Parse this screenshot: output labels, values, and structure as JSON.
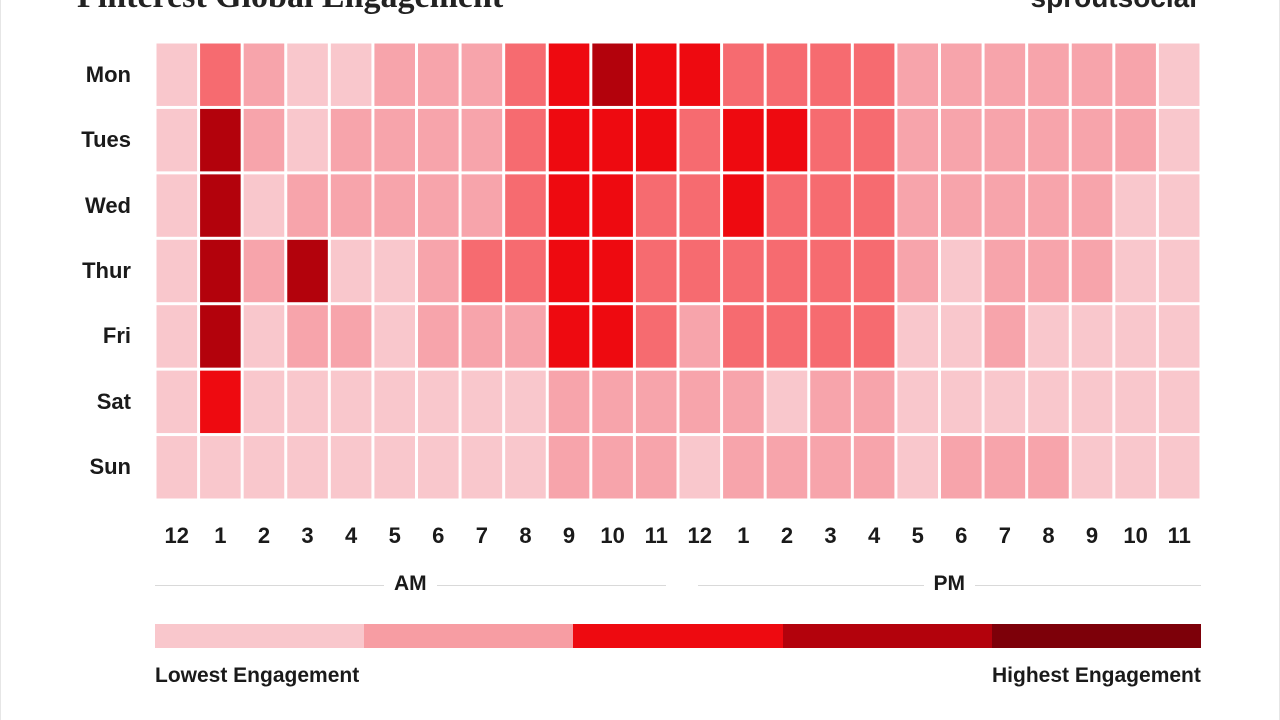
{
  "header": {
    "title": "Pinterest Global Engagement",
    "brand": "sproutsocial"
  },
  "chart_data": {
    "type": "heatmap",
    "title": "Pinterest Global Engagement",
    "rows": [
      "Mon",
      "Tues",
      "Wed",
      "Thur",
      "Fri",
      "Sat",
      "Sun"
    ],
    "columns": [
      "12",
      "1",
      "2",
      "3",
      "4",
      "5",
      "6",
      "7",
      "8",
      "9",
      "10",
      "11",
      "12",
      "1",
      "2",
      "3",
      "4",
      "5",
      "6",
      "7",
      "8",
      "9",
      "10",
      "11"
    ],
    "periods": [
      "AM",
      "PM"
    ],
    "scale_min": 0,
    "scale_max": 4,
    "values": [
      [
        0,
        2,
        1,
        0,
        0,
        1,
        1,
        1,
        2,
        3,
        4,
        3,
        3,
        2,
        2,
        2,
        2,
        1,
        1,
        1,
        1,
        1,
        1,
        0
      ],
      [
        0,
        4,
        1,
        0,
        1,
        1,
        1,
        1,
        2,
        3,
        3,
        3,
        2,
        3,
        3,
        2,
        2,
        1,
        1,
        1,
        1,
        1,
        1,
        0
      ],
      [
        0,
        4,
        0,
        1,
        1,
        1,
        1,
        1,
        2,
        3,
        3,
        2,
        2,
        3,
        2,
        2,
        2,
        1,
        1,
        1,
        1,
        1,
        0,
        0
      ],
      [
        0,
        4,
        1,
        4,
        0,
        0,
        1,
        2,
        2,
        3,
        3,
        2,
        2,
        2,
        2,
        2,
        2,
        1,
        0,
        1,
        1,
        1,
        0,
        0
      ],
      [
        0,
        4,
        0,
        1,
        1,
        0,
        1,
        1,
        1,
        3,
        3,
        2,
        1,
        2,
        2,
        2,
        2,
        0,
        0,
        1,
        0,
        0,
        0,
        0
      ],
      [
        0,
        3,
        0,
        0,
        0,
        0,
        0,
        0,
        0,
        1,
        1,
        1,
        1,
        1,
        0,
        1,
        1,
        0,
        0,
        0,
        0,
        0,
        0,
        0
      ],
      [
        0,
        0,
        0,
        0,
        0,
        0,
        0,
        0,
        0,
        1,
        1,
        1,
        0,
        1,
        1,
        1,
        1,
        0,
        1,
        1,
        1,
        0,
        0,
        0
      ]
    ],
    "colors": [
      "#f9c7cc",
      "#f7a4ab",
      "#f66b70",
      "#ee0a10",
      "#b3020c",
      "#7d0009"
    ],
    "legend": {
      "colors": [
        "#f9c7cc",
        "#f79da3",
        "#ee0a10",
        "#b3020c",
        "#7d0009"
      ],
      "low_label": "Lowest Engagement",
      "high_label": "Highest Engagement"
    }
  }
}
